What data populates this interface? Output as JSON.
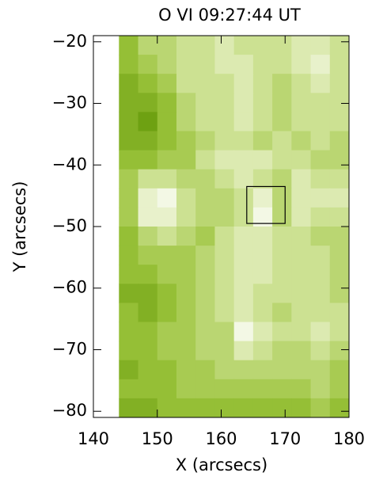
{
  "chart_data": {
    "type": "heatmap",
    "title": "O VI 09:27:44 UT",
    "x_label": "X (arcsecs)",
    "y_label": "Y (arcsecs)",
    "xlim": [
      140,
      180
    ],
    "ylim": [
      -81,
      -19
    ],
    "xticks": [
      140,
      150,
      160,
      170,
      180
    ],
    "yticks": [
      {
        "value": -20,
        "label": "−20"
      },
      {
        "value": -30,
        "label": "−30"
      },
      {
        "value": -40,
        "label": "−40"
      },
      {
        "value": -50,
        "label": "−50"
      },
      {
        "value": -60,
        "label": "−60"
      },
      {
        "value": -70,
        "label": "−70"
      },
      {
        "value": -80,
        "label": "−80"
      }
    ],
    "image_x": [
      144,
      180
    ],
    "image_y": [
      -81,
      -19
    ],
    "zlim": [
      0,
      1
    ],
    "colormap": [
      "#5a9200",
      "#9cc43c",
      "#d8e8a8",
      "#ffffff"
    ],
    "values": [
      [
        0.3,
        0.5,
        0.5,
        0.6,
        0.6,
        0.7,
        0.6,
        0.6,
        0.6,
        0.7,
        0.7,
        0.6
      ],
      [
        0.3,
        0.4,
        0.5,
        0.6,
        0.6,
        0.7,
        0.7,
        0.6,
        0.6,
        0.7,
        0.8,
        0.6
      ],
      [
        0.2,
        0.3,
        0.4,
        0.6,
        0.6,
        0.6,
        0.7,
        0.6,
        0.5,
        0.6,
        0.7,
        0.6
      ],
      [
        0.2,
        0.2,
        0.3,
        0.5,
        0.6,
        0.6,
        0.7,
        0.6,
        0.5,
        0.6,
        0.6,
        0.6
      ],
      [
        0.2,
        0.1,
        0.3,
        0.5,
        0.6,
        0.6,
        0.7,
        0.6,
        0.5,
        0.6,
        0.6,
        0.6
      ],
      [
        0.2,
        0.2,
        0.3,
        0.4,
        0.5,
        0.6,
        0.6,
        0.5,
        0.6,
        0.5,
        0.6,
        0.5
      ],
      [
        0.3,
        0.3,
        0.4,
        0.4,
        0.6,
        0.7,
        0.7,
        0.7,
        0.6,
        0.6,
        0.5,
        0.5
      ],
      [
        0.4,
        0.6,
        0.6,
        0.5,
        0.5,
        0.6,
        0.7,
        0.6,
        0.5,
        0.7,
        0.6,
        0.6
      ],
      [
        0.4,
        0.8,
        0.9,
        0.6,
        0.5,
        0.5,
        0.6,
        0.8,
        0.5,
        0.7,
        0.7,
        0.7
      ],
      [
        0.4,
        0.8,
        0.8,
        0.6,
        0.5,
        0.5,
        0.6,
        0.9,
        0.5,
        0.7,
        0.6,
        0.6
      ],
      [
        0.3,
        0.5,
        0.6,
        0.5,
        0.4,
        0.6,
        0.7,
        0.7,
        0.6,
        0.6,
        0.5,
        0.5
      ],
      [
        0.3,
        0.4,
        0.4,
        0.4,
        0.5,
        0.6,
        0.7,
        0.7,
        0.6,
        0.6,
        0.6,
        0.5
      ],
      [
        0.3,
        0.3,
        0.4,
        0.4,
        0.5,
        0.6,
        0.7,
        0.7,
        0.6,
        0.6,
        0.6,
        0.5
      ],
      [
        0.2,
        0.2,
        0.3,
        0.4,
        0.5,
        0.6,
        0.7,
        0.6,
        0.6,
        0.6,
        0.6,
        0.5
      ],
      [
        0.3,
        0.2,
        0.3,
        0.4,
        0.5,
        0.6,
        0.7,
        0.6,
        0.5,
        0.6,
        0.6,
        0.6
      ],
      [
        0.3,
        0.3,
        0.4,
        0.4,
        0.5,
        0.5,
        0.9,
        0.7,
        0.6,
        0.6,
        0.7,
        0.6
      ],
      [
        0.3,
        0.3,
        0.4,
        0.4,
        0.5,
        0.5,
        0.7,
        0.6,
        0.5,
        0.5,
        0.6,
        0.5
      ],
      [
        0.2,
        0.3,
        0.3,
        0.4,
        0.4,
        0.5,
        0.5,
        0.5,
        0.5,
        0.5,
        0.5,
        0.4
      ],
      [
        0.3,
        0.3,
        0.3,
        0.4,
        0.4,
        0.4,
        0.4,
        0.4,
        0.4,
        0.4,
        0.5,
        0.4
      ],
      [
        0.2,
        0.2,
        0.3,
        0.3,
        0.3,
        0.3,
        0.3,
        0.3,
        0.3,
        0.3,
        0.4,
        0.3
      ]
    ],
    "region": {
      "x": [
        164,
        170
      ],
      "y": [
        -49.5,
        -43.5
      ]
    }
  }
}
